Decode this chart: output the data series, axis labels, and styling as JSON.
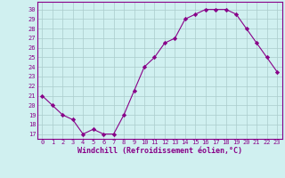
{
  "x": [
    0,
    1,
    2,
    3,
    4,
    5,
    6,
    7,
    8,
    9,
    10,
    11,
    12,
    13,
    14,
    15,
    16,
    17,
    18,
    19,
    20,
    21,
    22,
    23
  ],
  "y": [
    21,
    20,
    19,
    18.5,
    17,
    17.5,
    17,
    17,
    19,
    21.5,
    24,
    25,
    26.5,
    27,
    29,
    29.5,
    30,
    30,
    30,
    29.5,
    28,
    26.5,
    25,
    23.5
  ],
  "line_color": "#880088",
  "marker": "D",
  "marker_size": 2.2,
  "bg_color": "#d0f0f0",
  "grid_color": "#aacccc",
  "xlabel": "Windchill (Refroidissement éolien,°C)",
  "xlabel_color": "#880088",
  "yticks": [
    17,
    18,
    19,
    20,
    21,
    22,
    23,
    24,
    25,
    26,
    27,
    28,
    29,
    30
  ],
  "ylim": [
    16.5,
    30.8
  ],
  "xlim": [
    -0.5,
    23.5
  ],
  "tick_label_color": "#880088",
  "spine_color": "#880088",
  "font": "monospace"
}
